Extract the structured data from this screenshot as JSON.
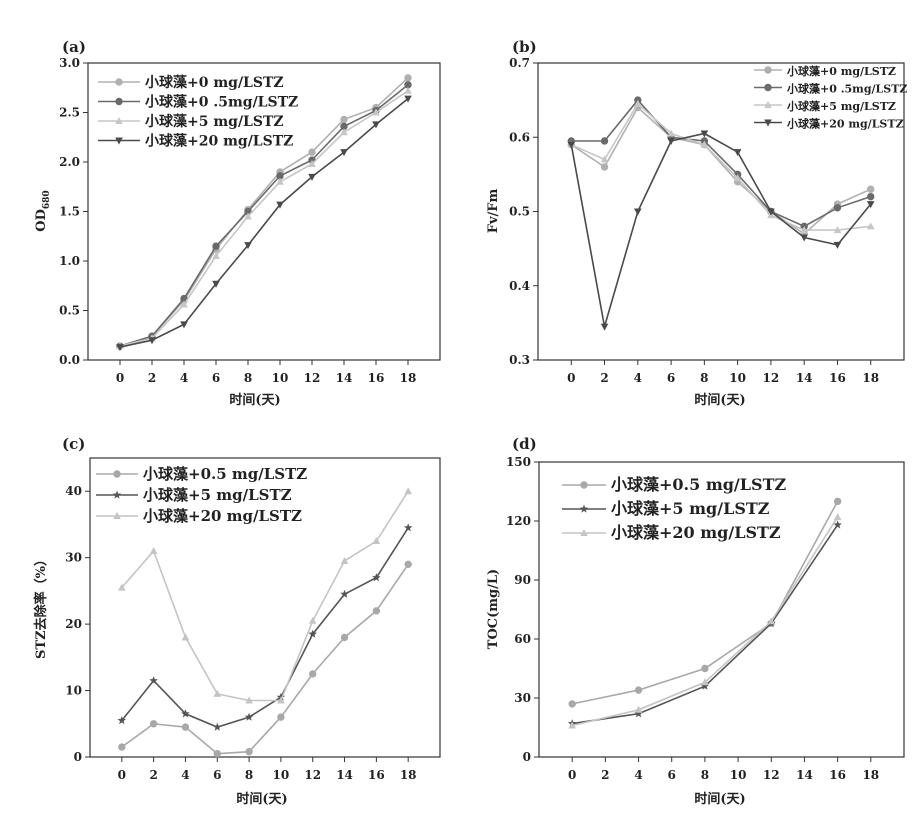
{
  "chart_data": [
    {
      "panel_label": "(a)",
      "type": "line",
      "xlabel": "时间(天)",
      "ylabel_main": "OD",
      "ylabel_sub": "680",
      "x": [
        0,
        2,
        4,
        6,
        8,
        10,
        12,
        14,
        16,
        18
      ],
      "xlim": [
        -2,
        20
      ],
      "ylim": [
        0,
        3.0
      ],
      "yticks": [
        "0.0",
        "0.5",
        "1.0",
        "1.5",
        "2.0",
        "2.5",
        "3.0"
      ],
      "legend_position": "top-left",
      "series": [
        {
          "name": "小球藻+0 mg/LSTZ",
          "color": "#b0b0b0",
          "marker": "o",
          "values": [
            0.14,
            0.24,
            0.6,
            1.12,
            1.52,
            1.9,
            2.1,
            2.43,
            2.55,
            2.85
          ]
        },
        {
          "name": "小球藻+0 .5mg/LSTZ",
          "color": "#6a6a6a",
          "marker": "o",
          "values": [
            0.14,
            0.24,
            0.62,
            1.15,
            1.5,
            1.86,
            2.02,
            2.36,
            2.52,
            2.78
          ]
        },
        {
          "name": "小球藻+5 mg/LSTZ",
          "color": "#c6c6c6",
          "marker": "^",
          "values": [
            0.14,
            0.22,
            0.56,
            1.05,
            1.45,
            1.8,
            1.98,
            2.3,
            2.5,
            2.72
          ]
        },
        {
          "name": "小球藻+20 mg/LSTZ",
          "color": "#4a4a4a",
          "marker": "v",
          "values": [
            0.13,
            0.2,
            0.36,
            0.77,
            1.16,
            1.57,
            1.85,
            2.1,
            2.38,
            2.64
          ]
        }
      ]
    },
    {
      "panel_label": "(b)",
      "type": "line",
      "xlabel": "时间(天)",
      "ylabel": "Fv/Fm",
      "x": [
        0,
        2,
        4,
        6,
        8,
        10,
        12,
        14,
        16,
        18
      ],
      "xlim": [
        -2,
        20
      ],
      "ylim": [
        0.3,
        0.7
      ],
      "yticks": [
        "0.3",
        "0.4",
        "0.5",
        "0.6",
        "0.7"
      ],
      "legend_position": "top-right",
      "series": [
        {
          "name": "小球藻+0 mg/LSTZ",
          "color": "#b0b0b0",
          "marker": "o",
          "values": [
            0.59,
            0.56,
            0.64,
            0.6,
            0.59,
            0.54,
            0.5,
            0.47,
            0.51,
            0.53
          ]
        },
        {
          "name": "小球藻+0 .5mg/LSTZ",
          "color": "#6a6a6a",
          "marker": "o",
          "values": [
            0.595,
            0.595,
            0.65,
            0.6,
            0.595,
            0.55,
            0.5,
            0.48,
            0.505,
            0.52
          ]
        },
        {
          "name": "小球藻+5 mg/LSTZ",
          "color": "#c6c6c6",
          "marker": "^",
          "values": [
            0.59,
            0.57,
            0.645,
            0.605,
            0.59,
            0.545,
            0.495,
            0.475,
            0.475,
            0.48
          ]
        },
        {
          "name": "小球藻+20 mg/LSTZ",
          "color": "#4a4a4a",
          "marker": "v",
          "values": [
            0.59,
            0.345,
            0.5,
            0.595,
            0.605,
            0.58,
            0.5,
            0.465,
            0.455,
            0.51
          ]
        }
      ]
    },
    {
      "panel_label": "(c)",
      "type": "line",
      "xlabel": "时间(天)",
      "ylabel": "STZ去除率（%）",
      "x": [
        0,
        2,
        4,
        6,
        8,
        10,
        12,
        14,
        16,
        18
      ],
      "xlim": [
        -2,
        20
      ],
      "ylim": [
        0,
        45
      ],
      "yticks": [
        "0",
        "10",
        "20",
        "30",
        "40"
      ],
      "legend_position": "top-left",
      "series": [
        {
          "name": "小球藻+0.5 mg/LSTZ",
          "color": "#a8a8a8",
          "marker": "o",
          "values": [
            1.5,
            5.0,
            4.5,
            0.5,
            0.8,
            6.0,
            12.5,
            18.0,
            22.0,
            29.0
          ]
        },
        {
          "name": "小球藻+5 mg/LSTZ",
          "color": "#555555",
          "marker": "*",
          "values": [
            5.5,
            11.5,
            6.5,
            4.5,
            6.0,
            9.0,
            18.5,
            24.5,
            27.0,
            34.5
          ]
        },
        {
          "name": "小球藻+20 mg/LSTZ",
          "color": "#c4c4c4",
          "marker": "^",
          "values": [
            25.5,
            31.0,
            18.0,
            9.5,
            8.5,
            8.5,
            20.5,
            29.5,
            32.5,
            40.0
          ]
        }
      ]
    },
    {
      "panel_label": "(d)",
      "type": "line",
      "xlabel": "时间(天)",
      "ylabel": "TOC(mg/L)",
      "x": [
        0,
        4,
        8,
        12,
        16
      ],
      "xticks": [
        0,
        2,
        4,
        6,
        8,
        10,
        12,
        14,
        16,
        18
      ],
      "xlim": [
        -2,
        20
      ],
      "ylim": [
        0,
        150
      ],
      "yticks": [
        "0",
        "30",
        "60",
        "90",
        "120",
        "150"
      ],
      "legend_position": "top-left",
      "series": [
        {
          "name": "小球藻+0.5 mg/LSTZ",
          "color": "#a8a8a8",
          "marker": "o",
          "values": [
            27,
            34,
            45,
            68,
            130
          ]
        },
        {
          "name": "小球藻+5 mg/LSTZ",
          "color": "#555555",
          "marker": "*",
          "values": [
            17,
            22,
            36,
            68,
            118
          ]
        },
        {
          "name": "小球藻+20 mg/LSTZ",
          "color": "#c4c4c4",
          "marker": "^",
          "values": [
            16,
            24,
            38,
            69,
            122
          ]
        }
      ]
    }
  ]
}
